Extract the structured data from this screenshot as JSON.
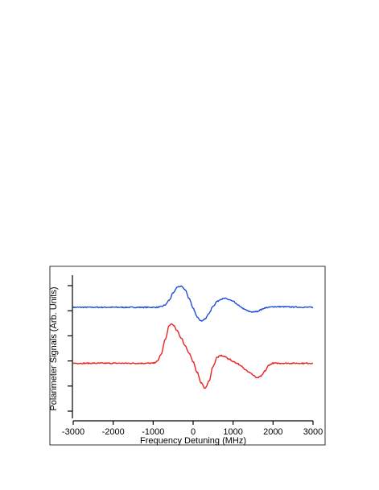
{
  "chart_data": {
    "type": "line",
    "xlabel": "Frequency Detuning (MHz)",
    "ylabel": "Polarimeter Signals (Arb. Units)",
    "xlim": [
      -3000,
      3000
    ],
    "ylim": [
      -1.3,
      1.2
    ],
    "x_ticks": [
      "-3000",
      "-2000",
      "-1000",
      "0",
      "1000",
      "2000",
      "3000"
    ],
    "y_ticks_unlabeled": 6,
    "grid": false,
    "legend": "none",
    "series": [
      {
        "color": "#1f4fd8",
        "x": [
          -3000,
          -2000,
          -1100,
          -900,
          -800,
          -700,
          -600,
          -500,
          -400,
          -300,
          -200,
          -100,
          0,
          100,
          200,
          300,
          400,
          500,
          600,
          700,
          800,
          900,
          1000,
          1100,
          1200,
          1300,
          1400,
          1500,
          1600,
          1700,
          1800,
          1900,
          2000,
          3000
        ],
        "y": [
          0.6,
          0.6,
          0.6,
          0.6,
          0.61,
          0.64,
          0.72,
          0.84,
          0.94,
          0.96,
          0.9,
          0.75,
          0.58,
          0.44,
          0.37,
          0.4,
          0.5,
          0.62,
          0.7,
          0.74,
          0.75,
          0.73,
          0.7,
          0.65,
          0.6,
          0.56,
          0.53,
          0.52,
          0.53,
          0.56,
          0.59,
          0.6,
          0.61,
          0.6
        ]
      },
      {
        "color": "#e8231f",
        "x": [
          -3000,
          -2000,
          -1000,
          -900,
          -800,
          -700,
          -600,
          -550,
          -500,
          -400,
          -300,
          -200,
          -100,
          0,
          100,
          200,
          300,
          400,
          500,
          600,
          700,
          800,
          900,
          1000,
          1100,
          1200,
          1300,
          1400,
          1500,
          1600,
          1700,
          1800,
          1900,
          2000,
          3000
        ],
        "y": [
          -0.35,
          -0.35,
          -0.35,
          -0.32,
          -0.2,
          0.05,
          0.28,
          0.32,
          0.3,
          0.2,
          0.08,
          -0.05,
          -0.18,
          -0.33,
          -0.5,
          -0.68,
          -0.78,
          -0.65,
          -0.4,
          -0.25,
          -0.22,
          -0.24,
          -0.28,
          -0.32,
          -0.35,
          -0.4,
          -0.45,
          -0.5,
          -0.55,
          -0.6,
          -0.57,
          -0.48,
          -0.38,
          -0.35,
          -0.35
        ]
      }
    ]
  }
}
